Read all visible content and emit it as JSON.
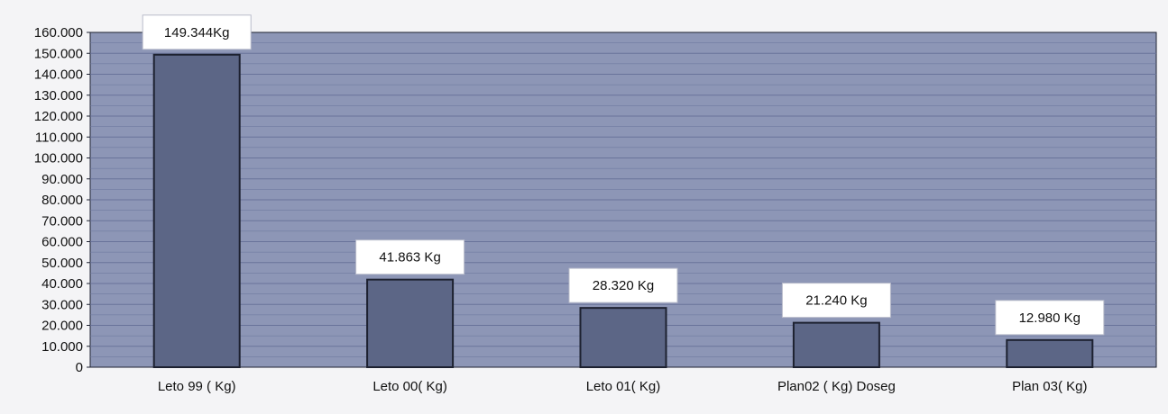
{
  "chart_data": {
    "type": "bar",
    "categories": [
      "Leto 99 ( Kg)",
      "Leto 00( Kg)",
      "Leto 01( Kg)",
      "Plan02 ( Kg) Doseg",
      "Plan 03( Kg)"
    ],
    "values": [
      149344,
      41863,
      28320,
      21240,
      12980
    ],
    "data_labels": [
      "149.344Kg",
      "41.863 Kg",
      "28.320 Kg",
      "21.240 Kg",
      "12.980 Kg"
    ],
    "y_ticks": [
      0,
      10000,
      20000,
      30000,
      40000,
      50000,
      60000,
      70000,
      80000,
      90000,
      100000,
      110000,
      120000,
      130000,
      140000,
      150000,
      160000
    ],
    "y_tick_labels": [
      "0",
      "10.000",
      "20.000",
      "30.000",
      "40.000",
      "50.000",
      "60.000",
      "70.000",
      "80.000",
      "90.000",
      "100.000",
      "110.000",
      "120.000",
      "130.000",
      "140.000",
      "150.000",
      "160.000"
    ],
    "ylim": [
      0,
      160000
    ],
    "grid": true,
    "title": "",
    "xlabel": "",
    "ylabel": "",
    "colors": {
      "plot_background": "#8d96b6",
      "bar": "#5c6686",
      "bar_outline": "#1d2130",
      "gridline": "#69739a",
      "axis_text": "#111111",
      "label_box": "#ffffff"
    }
  }
}
